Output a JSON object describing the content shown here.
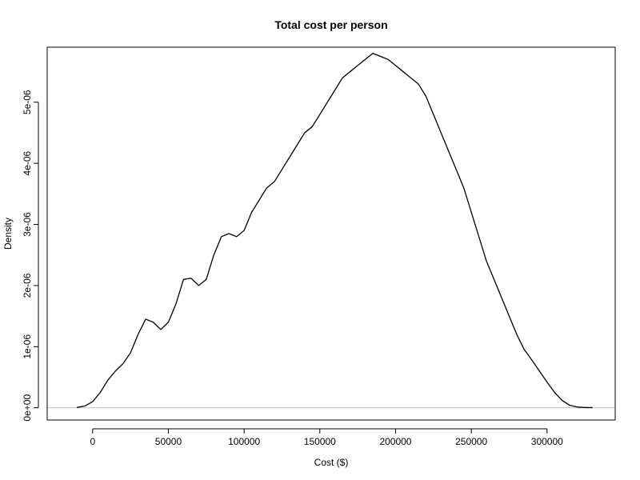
{
  "chart_data": {
    "type": "line",
    "title": "Total cost per person",
    "xlabel": "Cost ($)",
    "ylabel": "Density",
    "xlim": [
      -30000,
      345000
    ],
    "ylim": [
      -2e-07,
      5.9e-06
    ],
    "xticks": [
      0,
      50000,
      100000,
      150000,
      200000,
      250000,
      300000
    ],
    "xtick_labels": [
      "0",
      "50000",
      "100000",
      "150000",
      "200000",
      "250000",
      "300000"
    ],
    "yticks": [
      0,
      1e-06,
      2e-06,
      3e-06,
      4e-06,
      5e-06
    ],
    "ytick_labels": [
      "0e+00",
      "1e-06",
      "2e-06",
      "3e-06",
      "4e-06",
      "5e-06"
    ],
    "grid": false,
    "baseline": {
      "y": 0,
      "color": "#bebebe"
    },
    "line_color": "#000000",
    "series": [
      {
        "x": [
          -10500,
          -5000,
          0,
          5000,
          10000,
          15000,
          20000,
          25000,
          30000,
          35000,
          40000,
          45000,
          50000,
          55000,
          60000,
          65000,
          70000,
          75000,
          80000,
          85000,
          90000,
          95000,
          100000,
          105000,
          110000,
          115000,
          120000,
          125000,
          130000,
          135000,
          140000,
          145000,
          150000,
          155000,
          160000,
          165000,
          170000,
          175000,
          180000,
          185000,
          190000,
          195000,
          200000,
          205000,
          210000,
          215000,
          220000,
          225000,
          230000,
          235000,
          240000,
          245000,
          250000,
          255000,
          260000,
          265000,
          270000,
          275000,
          280000,
          285000,
          290000,
          295000,
          300000,
          305000,
          310000,
          315000,
          320000,
          325000,
          330000
        ],
        "y": [
          5e-09,
          3e-08,
          1e-07,
          2.5e-07,
          4.5e-07,
          6e-07,
          7.2e-07,
          9e-07,
          1.2e-06,
          1.45e-06,
          1.4e-06,
          1.28e-06,
          1.4e-06,
          1.7e-06,
          2.1e-06,
          2.12e-06,
          2e-06,
          2.1e-06,
          2.5e-06,
          2.8e-06,
          2.85e-06,
          2.8e-06,
          2.9e-06,
          3.2e-06,
          3.4e-06,
          3.6e-06,
          3.7e-06,
          3.9e-06,
          4.1e-06,
          4.3e-06,
          4.5e-06,
          4.6e-06,
          4.8e-06,
          5e-06,
          5.2e-06,
          5.4e-06,
          5.5e-06,
          5.6e-06,
          5.7e-06,
          5.8e-06,
          5.75e-06,
          5.7e-06,
          5.6e-06,
          5.5e-06,
          5.4e-06,
          5.3e-06,
          5.1e-06,
          4.8e-06,
          4.5e-06,
          4.2e-06,
          3.9e-06,
          3.6e-06,
          3.2e-06,
          2.8e-06,
          2.4e-06,
          2.1e-06,
          1.8e-06,
          1.5e-06,
          1.2e-06,
          9.5e-07,
          7.8e-07,
          6e-07,
          4.2e-07,
          2.5e-07,
          1.2e-07,
          4e-08,
          1.2e-08,
          4e-09,
          4e-09
        ]
      }
    ]
  }
}
